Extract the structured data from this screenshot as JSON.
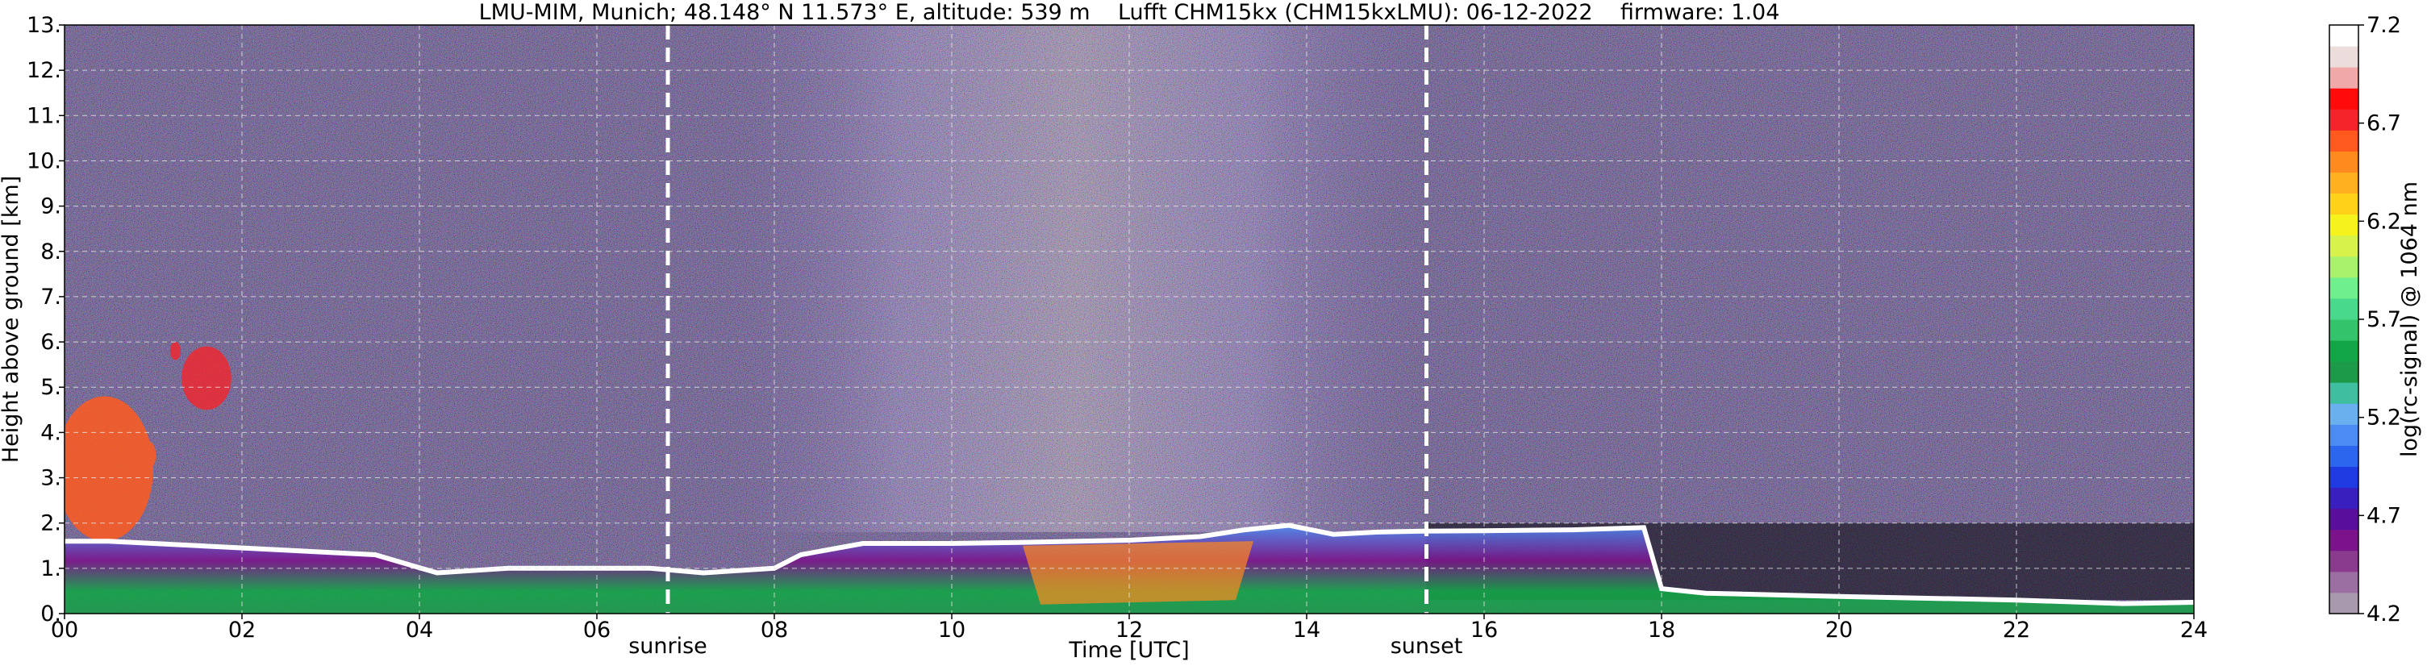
{
  "chart_data": {
    "type": "heatmap",
    "title": "LMU-MIM, Munich; 48.148° N 11.573° E, altitude: 539 m    Lufft CHM15kx (CHM15kxLMU): 06-12-2022    firmware: 1.04",
    "xlabel": "Time [UTC]",
    "ylabel": "Height above ground [km]",
    "xlim": [
      0,
      24
    ],
    "ylim": [
      0,
      13
    ],
    "x_ticks": [
      0,
      2,
      4,
      6,
      8,
      10,
      12,
      14,
      16,
      18,
      20,
      22,
      24
    ],
    "x_tick_labels": [
      "00",
      "02",
      "04",
      "06",
      "08",
      "10",
      "12",
      "14",
      "16",
      "18",
      "20",
      "22",
      "24"
    ],
    "y_ticks": [
      0,
      1,
      2,
      3,
      4,
      5,
      6,
      7,
      8,
      9,
      10,
      11,
      12,
      13
    ],
    "y_tick_labels": [
      "0.",
      "1.",
      "2.",
      "3.",
      "4.",
      "5.",
      "6.",
      "7.",
      "8.",
      "9.",
      "10.",
      "11.",
      "12.",
      "13."
    ],
    "grid": true,
    "vertical_markers": [
      {
        "label": "sunrise",
        "x": 6.8
      },
      {
        "label": "sunset",
        "x": 15.35
      }
    ],
    "colorbar": {
      "label": "log(rc-signal) @ 1064 nm",
      "range": [
        4.2,
        7.2
      ],
      "ticks": [
        4.2,
        4.7,
        5.2,
        5.7,
        6.2,
        6.7,
        7.2
      ],
      "tick_labels": [
        "4.2",
        "4.7",
        "5.2",
        "5.7",
        "6.2",
        "6.7",
        "7.2"
      ],
      "colors": [
        "#a89aac",
        "#9c6fa2",
        "#8a3b8e",
        "#7b148a",
        "#5a0f9c",
        "#3a1fbf",
        "#1e3ae0",
        "#2c66ee",
        "#4c8cf2",
        "#6ab0ef",
        "#3fbf9f",
        "#1c9a4a",
        "#12a646",
        "#33c36b",
        "#49d98c",
        "#6ff08c",
        "#a8f26b",
        "#d8f24c",
        "#f5f21c",
        "#ffd21a",
        "#ffb020",
        "#ff8a1e",
        "#ff5a1e",
        "#f5242a",
        "#ff0b0b",
        "#f0a8a8",
        "#ecdcdc",
        "#ffffff"
      ]
    },
    "features": [
      {
        "name": "boundary-layer top",
        "x": [
          0,
          0.5,
          1.5,
          2.5,
          3.5,
          4.2,
          5.0,
          5.8,
          6.6,
          7.2,
          8.0,
          8.3,
          9.0,
          10.0,
          11.0,
          12.0,
          12.8,
          13.3,
          13.8,
          14.3,
          14.8,
          15.3,
          16.0,
          17.0,
          17.8,
          18.0,
          18.5,
          20.0,
          22.0,
          23.2,
          24.0
        ],
        "y": [
          1.6,
          1.6,
          1.5,
          1.4,
          1.3,
          0.9,
          1.0,
          1.0,
          1.0,
          0.9,
          1.0,
          1.3,
          1.55,
          1.55,
          1.58,
          1.62,
          1.7,
          1.85,
          1.95,
          1.75,
          1.8,
          1.82,
          1.83,
          1.85,
          1.9,
          0.55,
          0.45,
          0.38,
          0.3,
          0.22,
          0.25
        ]
      },
      {
        "name": "mid-level clouds",
        "x": [
          0.0,
          0.95,
          1.6,
          1.85
        ],
        "y": [
          3.2,
          3.5,
          5.2,
          4.9
        ]
      }
    ]
  }
}
